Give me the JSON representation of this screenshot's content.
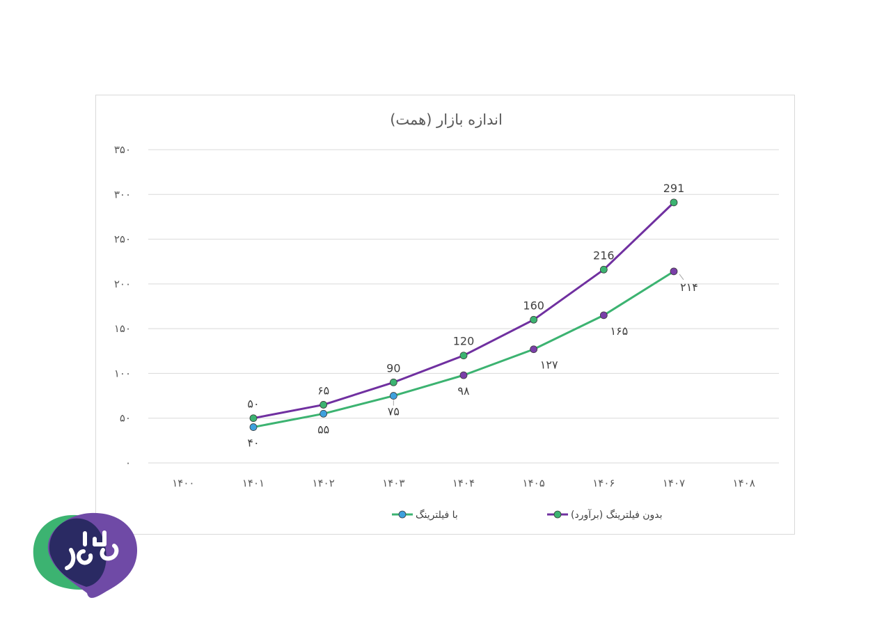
{
  "chart_data": {
    "type": "line",
    "title": "اندازه بازار (همت)",
    "xlabel": "",
    "ylabel": "",
    "categories": [
      "۱۴۰۰",
      "۱۴۰۱",
      "۱۴۰۲",
      "۱۴۰۳",
      "۱۴۰۴",
      "۱۴۰۵",
      "۱۴۰۶",
      "۱۴۰۷",
      "۱۴۰۸"
    ],
    "ylim": [
      0,
      350
    ],
    "yticks": [
      0,
      50,
      100,
      150,
      200,
      250,
      300,
      350
    ],
    "ytick_labels": [
      "۰",
      "۵۰",
      "۱۰۰",
      "۱۵۰",
      "۲۰۰",
      "۲۵۰",
      "۳۰۰",
      "۳۵۰"
    ],
    "grid": true,
    "legend_position": "bottom",
    "series": [
      {
        "name": "بدون فیلترینگ (برآورد)",
        "values": [
          null,
          50,
          65,
          90,
          120,
          160,
          216,
          291,
          null
        ],
        "labels": [
          null,
          "۵۰",
          "۶۵",
          "90",
          "120",
          "160",
          "216",
          "291",
          null
        ],
        "line_color": "#7030a0",
        "marker_color": "#3cb371",
        "label_position": "above"
      },
      {
        "name": "با فیلترینگ",
        "values": [
          null,
          40,
          55,
          75,
          98,
          127,
          165,
          214,
          null
        ],
        "labels": [
          null,
          "۴۰",
          "۵۵",
          "۷۵",
          "۹۸",
          "۱۲۷",
          "۱۶۵",
          "۲۱۴",
          null
        ],
        "line_color": "#3cb371",
        "marker_colors": [
          null,
          "#3ea0dd",
          "#3ea0dd",
          "#3ea0dd",
          "#7a3fa8",
          "#7a3fa8",
          "#7a3fa8",
          "#7a3fa8",
          null
        ],
        "label_position": "below"
      }
    ]
  },
  "logo": {
    "name": "یادرو",
    "colors": {
      "green": "#3cb371",
      "purple": "#6f4aa6",
      "navy": "#2a2a63"
    }
  }
}
